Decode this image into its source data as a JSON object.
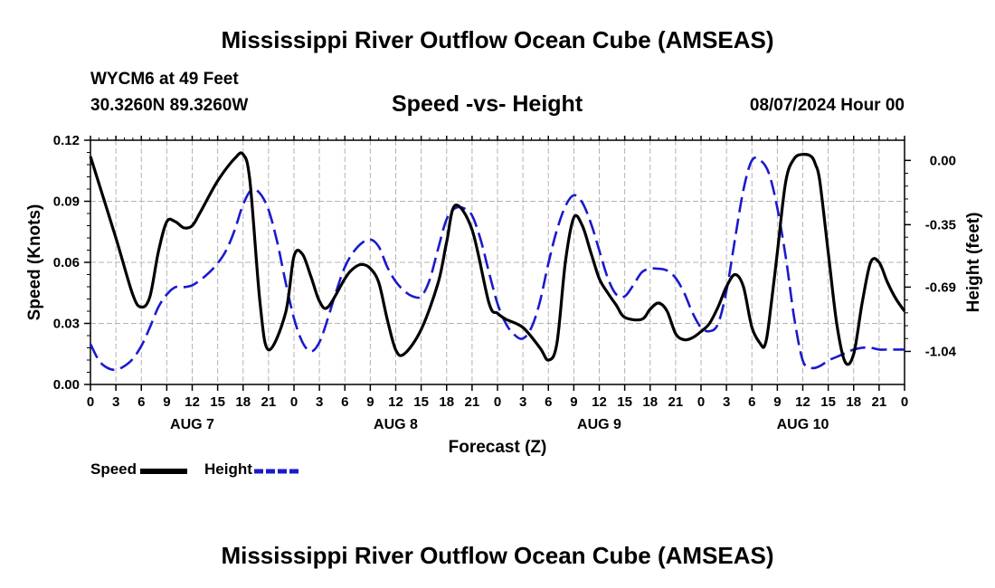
{
  "header": {
    "title": "Mississippi River Outflow Ocean Cube (AMSEAS)",
    "station": "WYCM6 at 49 Feet",
    "coords": "30.3260N  89.3260W",
    "subtitle": "Speed -vs- Height",
    "date": "08/07/2024 Hour 00"
  },
  "footer": {
    "title": "Mississippi River Outflow Ocean Cube (AMSEAS)"
  },
  "legend": {
    "speed_label": "Speed",
    "height_label": "Height",
    "speed_color": "#000000",
    "height_color": "#1a1acc"
  },
  "chart_data": {
    "type": "line",
    "title": "Speed -vs- Height",
    "xlabel": "Forecast (Z)",
    "ylabel": "Speed (Knots)",
    "y2label": "Height (feet)",
    "xlim": [
      0,
      96
    ],
    "ylim": [
      0,
      0.12
    ],
    "y2lim": [
      -1.22,
      0.11
    ],
    "grid": true,
    "legend_position": "bottom-left",
    "x_ticks": [
      0,
      3,
      6,
      9,
      12,
      15,
      18,
      21,
      24,
      27,
      30,
      33,
      36,
      39,
      42,
      45,
      48,
      51,
      54,
      57,
      60,
      63,
      66,
      69,
      72,
      75,
      78,
      81,
      84,
      87,
      90,
      93,
      96
    ],
    "x_tick_labels": [
      "0",
      "3",
      "6",
      "9",
      "12",
      "15",
      "18",
      "21",
      "0",
      "3",
      "6",
      "9",
      "12",
      "15",
      "18",
      "21",
      "0",
      "3",
      "6",
      "9",
      "12",
      "15",
      "18",
      "21",
      "0",
      "3",
      "6",
      "9",
      "12",
      "15",
      "18",
      "21",
      "0"
    ],
    "day_labels": [
      {
        "x": 12,
        "label": "AUG 7"
      },
      {
        "x": 36,
        "label": "AUG 8"
      },
      {
        "x": 60,
        "label": "AUG 9"
      },
      {
        "x": 84,
        "label": "AUG 10"
      }
    ],
    "y_ticks": [
      0,
      0.03,
      0.06,
      0.09,
      0.12
    ],
    "y_tick_labels": [
      "0.00",
      "0.03",
      "0.06",
      "0.09",
      "0.12"
    ],
    "y2_ticks": [
      0,
      -0.35,
      -0.69,
      -1.04
    ],
    "y2_tick_labels": [
      "0.00",
      "-0.35",
      "-0.69",
      "-1.04"
    ],
    "series": [
      {
        "name": "Speed",
        "axis": "left",
        "color": "#000000",
        "dash": "solid",
        "x": [
          0,
          3,
          5,
          6,
          7,
          8,
          9,
          10,
          11,
          12,
          13,
          15,
          17,
          18,
          18.8,
          20,
          21,
          23,
          24,
          25,
          26,
          27,
          28,
          30,
          31,
          32,
          33,
          34,
          35,
          36,
          37,
          39,
          41,
          42,
          43,
          45,
          47,
          48,
          49,
          51,
          53,
          54,
          55,
          56,
          57,
          58,
          59,
          60,
          61,
          62,
          63,
          65,
          66,
          67,
          68,
          69,
          70,
          71,
          72,
          73,
          74,
          75,
          76,
          77,
          78,
          79,
          79.5,
          80,
          81,
          82,
          83,
          84,
          85,
          85.5,
          86,
          87,
          88,
          89,
          90,
          91,
          92,
          93,
          94,
          95,
          96
        ],
        "y": [
          0.112,
          0.072,
          0.044,
          0.038,
          0.043,
          0.065,
          0.08,
          0.08,
          0.077,
          0.078,
          0.085,
          0.1,
          0.111,
          0.113,
          0.1,
          0.04,
          0.017,
          0.035,
          0.063,
          0.064,
          0.053,
          0.041,
          0.038,
          0.052,
          0.057,
          0.059,
          0.057,
          0.05,
          0.032,
          0.017,
          0.015,
          0.027,
          0.05,
          0.07,
          0.088,
          0.076,
          0.04,
          0.035,
          0.032,
          0.028,
          0.018,
          0.012,
          0.02,
          0.06,
          0.082,
          0.078,
          0.065,
          0.052,
          0.045,
          0.039,
          0.033,
          0.032,
          0.037,
          0.04,
          0.036,
          0.025,
          0.022,
          0.023,
          0.026,
          0.03,
          0.038,
          0.048,
          0.054,
          0.048,
          0.028,
          0.02,
          0.019,
          0.03,
          0.065,
          0.1,
          0.111,
          0.113,
          0.112,
          0.108,
          0.1,
          0.065,
          0.03,
          0.011,
          0.015,
          0.04,
          0.06,
          0.06,
          0.05,
          0.042,
          0.036
        ]
      },
      {
        "name": "Height",
        "axis": "right",
        "color": "#1a1acc",
        "dash": "dashed",
        "x": [
          0,
          1,
          2,
          3,
          4,
          5,
          6,
          7,
          8,
          9,
          10,
          11,
          12,
          13,
          14,
          15,
          16,
          17,
          18,
          19,
          20,
          21,
          22,
          23,
          24,
          25,
          26,
          27,
          28,
          29,
          30,
          31,
          32,
          33,
          34,
          35,
          36,
          37,
          38,
          39,
          40,
          41,
          42,
          43,
          44,
          45,
          46,
          47,
          48,
          49,
          50,
          51,
          52,
          53,
          54,
          55,
          56,
          57,
          58,
          59,
          60,
          61,
          62,
          63,
          64,
          65,
          66,
          67,
          68,
          69,
          70,
          71,
          72,
          73,
          74,
          75,
          76,
          77,
          78,
          79,
          80,
          81,
          82,
          83,
          84,
          85,
          86,
          87,
          88,
          89,
          90,
          91,
          92,
          93,
          94,
          95,
          96
        ],
        "y": [
          -1.0,
          -1.09,
          -1.13,
          -1.14,
          -1.12,
          -1.08,
          -1.01,
          -0.91,
          -0.8,
          -0.73,
          -0.69,
          -0.69,
          -0.68,
          -0.65,
          -0.61,
          -0.56,
          -0.49,
          -0.38,
          -0.24,
          -0.16,
          -0.18,
          -0.27,
          -0.44,
          -0.66,
          -0.86,
          -0.99,
          -1.04,
          -0.99,
          -0.86,
          -0.71,
          -0.58,
          -0.5,
          -0.45,
          -0.43,
          -0.47,
          -0.58,
          -0.66,
          -0.71,
          -0.74,
          -0.74,
          -0.65,
          -0.48,
          -0.32,
          -0.26,
          -0.26,
          -0.3,
          -0.43,
          -0.61,
          -0.78,
          -0.89,
          -0.95,
          -0.97,
          -0.91,
          -0.77,
          -0.56,
          -0.38,
          -0.25,
          -0.19,
          -0.23,
          -0.34,
          -0.49,
          -0.64,
          -0.73,
          -0.74,
          -0.68,
          -0.61,
          -0.59,
          -0.59,
          -0.6,
          -0.64,
          -0.72,
          -0.83,
          -0.91,
          -0.93,
          -0.89,
          -0.71,
          -0.43,
          -0.16,
          0.0,
          0.0,
          -0.07,
          -0.26,
          -0.53,
          -0.86,
          -1.09,
          -1.13,
          -1.12,
          -1.09,
          -1.07,
          -1.05,
          -1.03,
          -1.02,
          -1.02,
          -1.03,
          -1.03,
          -1.03,
          -1.03
        ]
      }
    ]
  }
}
